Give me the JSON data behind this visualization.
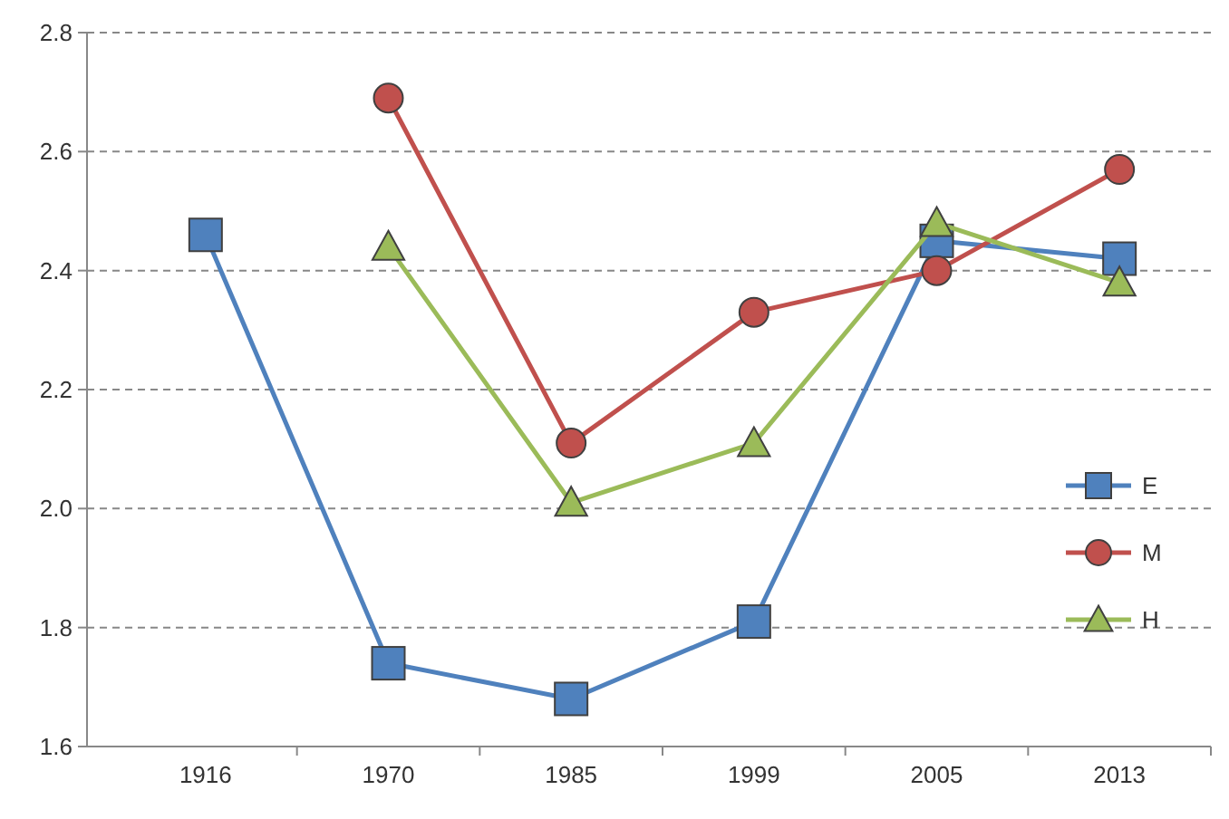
{
  "chart_data": {
    "type": "line",
    "categories": [
      "1916",
      "1970",
      "1985",
      "1999",
      "2005",
      "2013"
    ],
    "series": [
      {
        "name": "E",
        "color": "#4f81bd",
        "marker": "square",
        "values": [
          2.46,
          1.74,
          1.68,
          1.81,
          2.45,
          2.42
        ]
      },
      {
        "name": "M",
        "color": "#c0504d",
        "marker": "circle",
        "values": [
          null,
          2.69,
          2.11,
          2.33,
          2.4,
          2.57
        ]
      },
      {
        "name": "H",
        "color": "#9bbb59",
        "marker": "triangle",
        "values": [
          null,
          2.44,
          2.01,
          2.11,
          2.48,
          2.38
        ]
      }
    ],
    "ylim": [
      1.6,
      2.8
    ],
    "yticks": [
      {
        "value": 1.6,
        "label": "1.6"
      },
      {
        "value": 1.8,
        "label": "1.8"
      },
      {
        "value": 2,
        "label": "2.0"
      },
      {
        "value": 2.2,
        "label": "2.2"
      },
      {
        "value": 2.4,
        "label": "2.4"
      },
      {
        "value": 2.6,
        "label": "2.6"
      },
      {
        "value": 2.8,
        "label": "2.8"
      }
    ],
    "grid": "y",
    "legend": "right",
    "line_style": "solid"
  }
}
